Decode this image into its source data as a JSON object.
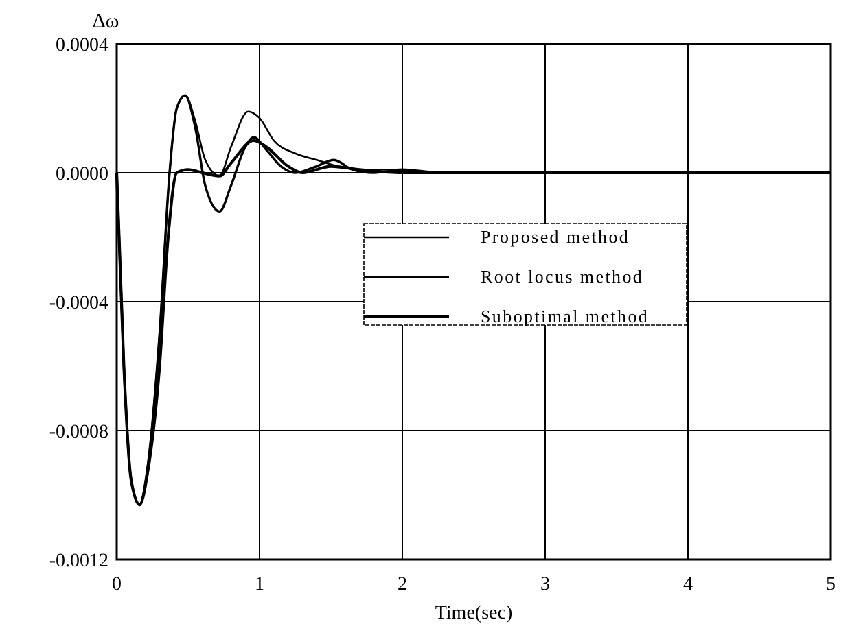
{
  "chart_data": {
    "type": "line",
    "xlabel": "Time(sec)",
    "ylabel": "Δω",
    "xlim": [
      0,
      5
    ],
    "xticks": [
      0,
      1,
      2,
      3,
      4,
      5
    ],
    "ylim": [
      -0.0012,
      0.0004
    ],
    "yticks": [
      {
        "value": 0.0004,
        "label": "0.0004"
      },
      {
        "value": 0,
        "label": "0.0000"
      },
      {
        "value": -0.0004,
        "label": "-0.0004"
      },
      {
        "value": -0.0008,
        "label": "-0.0008"
      },
      {
        "value": -0.0012,
        "label": "-0.0012"
      }
    ],
    "grid": true,
    "legend": "right",
    "marker": "none",
    "line_style": "solid",
    "series": [
      {
        "name": "Proposed method",
        "color": "#000000",
        "x": [
          0,
          0.05,
          0.1,
          0.16,
          0.22,
          0.3,
          0.37,
          0.42,
          0.48,
          0.55,
          0.62,
          0.72,
          0.8,
          0.92,
          1.0,
          1.1,
          1.25,
          1.4,
          1.55,
          1.7,
          2.0,
          2.3,
          5
        ],
        "values": [
          0,
          -0.0006,
          -0.00095,
          -0.00103,
          -0.0009,
          -0.0005,
          0,
          0.0002,
          0.00024,
          0.00016,
          4e-05,
          -1e-05,
          8e-05,
          0.00019,
          0.00017,
          0.0001,
          6e-05,
          4e-05,
          2e-05,
          1e-05,
          1e-05,
          0,
          0
        ]
      },
      {
        "name": "Root locus method",
        "color": "#000000",
        "x": [
          0,
          0.05,
          0.1,
          0.16,
          0.22,
          0.3,
          0.37,
          0.42,
          0.48,
          0.55,
          0.62,
          0.72,
          0.8,
          0.9,
          0.96,
          1.05,
          1.15,
          1.25,
          1.4,
          1.52,
          1.65,
          1.8,
          2.0,
          2.2,
          5
        ],
        "values": [
          0,
          -0.0006,
          -0.00095,
          -0.00103,
          -0.0009,
          -0.0005,
          0,
          0.0002,
          0.00024,
          0.00014,
          -4e-05,
          -0.00012,
          -4e-05,
          8e-05,
          0.00011,
          7e-05,
          2e-05,
          0,
          2e-05,
          4e-05,
          1e-05,
          0,
          1e-05,
          0,
          0
        ]
      },
      {
        "name": "Suboptimal method",
        "color": "#000000",
        "x": [
          0,
          0.05,
          0.1,
          0.16,
          0.22,
          0.3,
          0.36,
          0.42,
          0.5,
          0.6,
          0.72,
          0.8,
          0.96,
          1.05,
          1.2,
          1.3,
          1.5,
          1.7,
          2.0,
          5
        ],
        "values": [
          0,
          -0.0006,
          -0.00095,
          -0.00103,
          -0.00092,
          -0.0006,
          -0.0002,
          0,
          1e-05,
          0,
          -1e-05,
          3e-05,
          0.0001,
          8e-05,
          2e-05,
          0,
          2e-05,
          1e-05,
          0,
          0
        ]
      }
    ]
  }
}
